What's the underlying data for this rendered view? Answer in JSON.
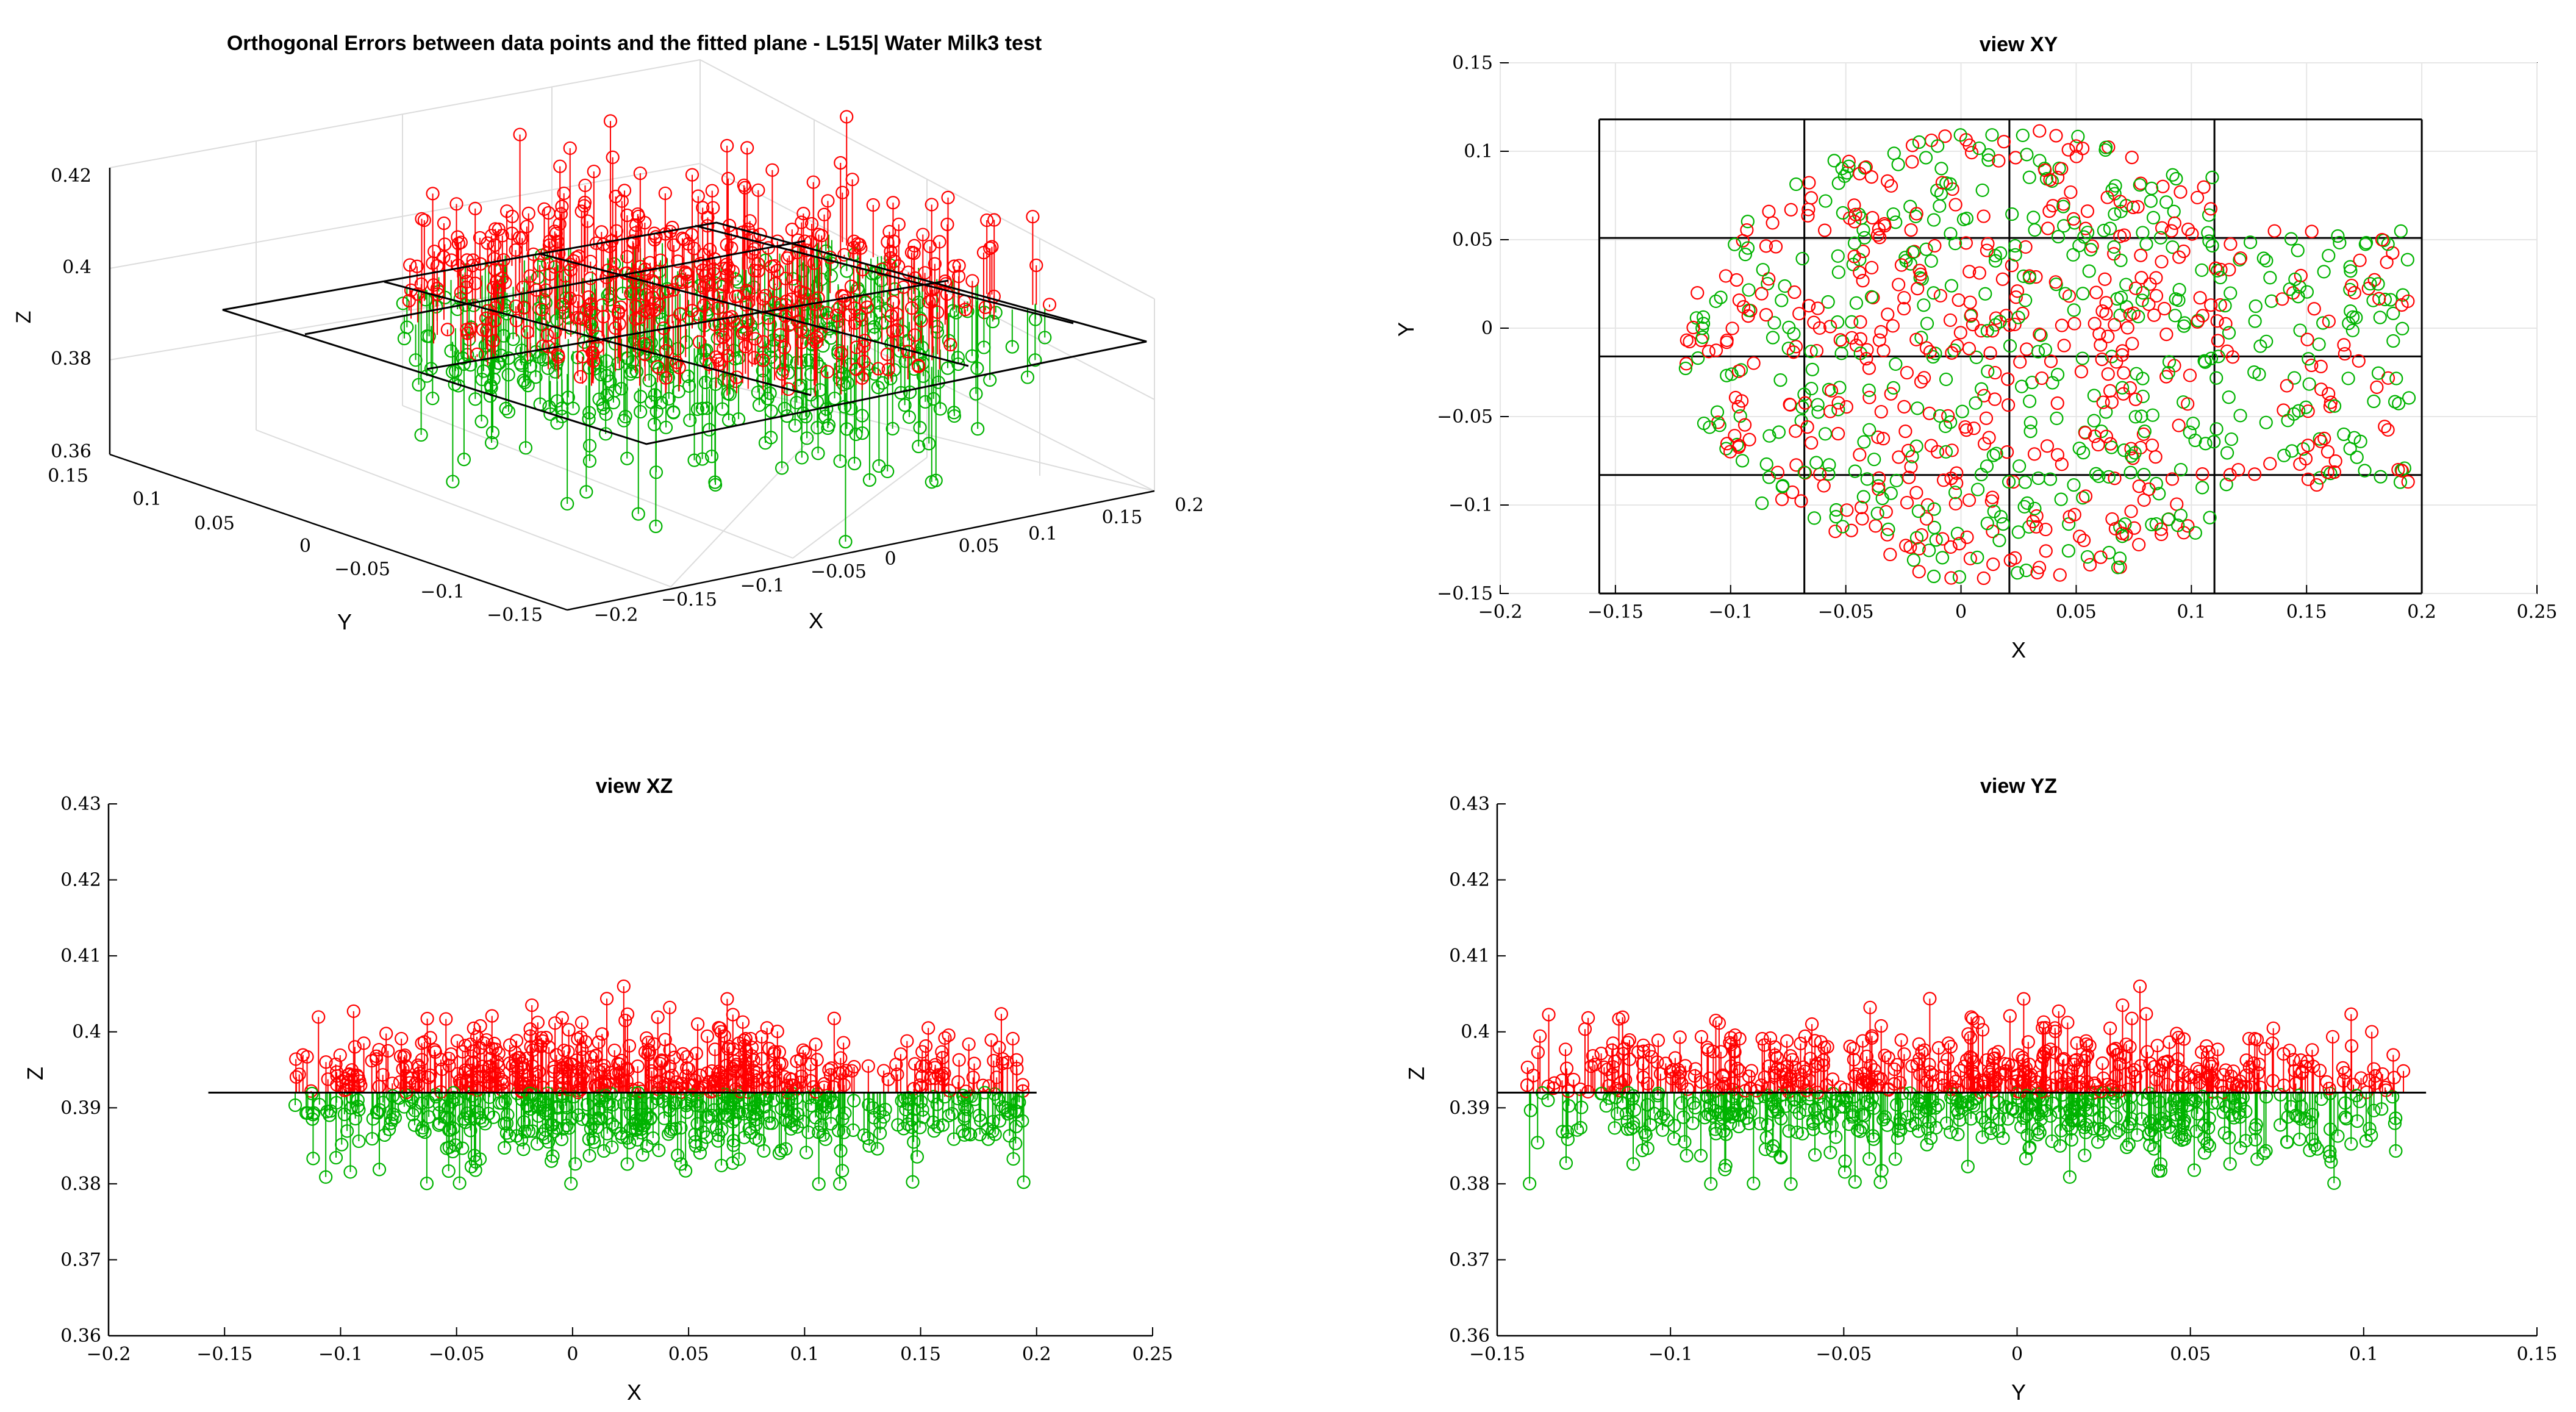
{
  "colors": {
    "above": "#ff0000",
    "below": "#00b300",
    "plane": "#000000",
    "grid": "#e6e6e6",
    "axis": "#000000"
  },
  "chart_data": [
    {
      "id": "p3d",
      "type": "scatter",
      "title": "Orthogonal Errors between data points and the fitted plane - L515| Water Milk3 test",
      "xlabel": "X",
      "ylabel": "Y",
      "zlabel": "Z",
      "xlim": [
        -0.2,
        0.2
      ],
      "ylim": [
        -0.15,
        0.15
      ],
      "zlim": [
        0.36,
        0.42
      ],
      "xticks": [
        "−0.2",
        "−0.15",
        "−0.1",
        "−0.05",
        "0",
        "0.05",
        "0.1",
        "0.15",
        "0.2"
      ],
      "yticks": [
        "−0.15",
        "−0.1",
        "−0.05",
        "0",
        "0.05",
        "0.1",
        "0.15"
      ],
      "zticks": [
        "0.36",
        "0.38",
        "0.4",
        "0.42"
      ],
      "plane_z": 0.392,
      "note": "3D stem plot of orthogonal errors; red stems above fitted plane, green below"
    },
    {
      "id": "pxy",
      "type": "scatter",
      "title": "view XY",
      "xlabel": "X",
      "ylabel": "Y",
      "xlim": [
        -0.2,
        0.25
      ],
      "ylim": [
        -0.15,
        0.15
      ],
      "xticks": [
        "−0.2",
        "−0.15",
        "−0.1",
        "−0.05",
        "0",
        "0.05",
        "0.1",
        "0.15",
        "0.2",
        "0.25"
      ],
      "yticks": [
        "−0.15",
        "−0.1",
        "−0.05",
        "0",
        "0.05",
        "0.1",
        "0.15"
      ],
      "plane_grid_x": [
        -0.157,
        -0.068,
        0.021,
        0.11,
        0.2
      ],
      "plane_grid_y": [
        -0.15,
        -0.083,
        -0.016,
        0.051,
        0.118
      ],
      "point_region": {
        "x": [
          -0.135,
          0.2
        ],
        "y": [
          -0.145,
          0.112
        ]
      }
    },
    {
      "id": "pxz",
      "type": "scatter",
      "title": "view XZ",
      "xlabel": "X",
      "ylabel": "Z",
      "xlim": [
        -0.2,
        0.25
      ],
      "ylim": [
        0.36,
        0.43
      ],
      "xticks": [
        "−0.2",
        "−0.15",
        "−0.1",
        "−0.05",
        "0",
        "0.05",
        "0.1",
        "0.15",
        "0.2",
        "0.25"
      ],
      "yticks": [
        "0.36",
        "0.37",
        "0.38",
        "0.39",
        "0.4",
        "0.41",
        "0.42",
        "0.43"
      ],
      "plane_z": 0.392,
      "plane_span": [
        -0.157,
        0.2
      ]
    },
    {
      "id": "pyz",
      "type": "scatter",
      "title": "view YZ",
      "xlabel": "Y",
      "ylabel": "Z",
      "xlim": [
        -0.15,
        0.15
      ],
      "ylim": [
        0.36,
        0.43
      ],
      "xticks": [
        "−0.15",
        "−0.1",
        "−0.05",
        "0",
        "0.05",
        "0.1",
        "0.15"
      ],
      "yticks": [
        "0.36",
        "0.37",
        "0.38",
        "0.39",
        "0.4",
        "0.41",
        "0.42",
        "0.43"
      ],
      "plane_z": 0.392,
      "plane_span": [
        -0.15,
        0.118
      ]
    }
  ]
}
